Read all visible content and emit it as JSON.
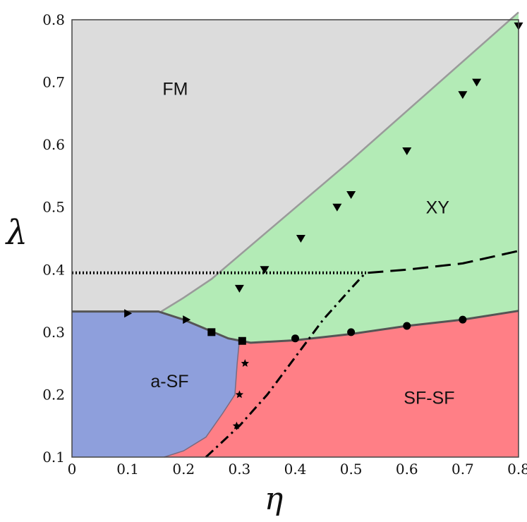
{
  "chart_data": {
    "type": "scatter",
    "title": "",
    "xlabel": "η",
    "ylabel": "λ",
    "xlim": [
      0,
      0.8
    ],
    "ylim": [
      0.1,
      0.8
    ],
    "x_ticks": [
      "0",
      "0.1",
      "0.2",
      "0.3",
      "0.4",
      "0.5",
      "0.6",
      "0.7",
      "0.8"
    ],
    "y_ticks": [
      "0.1",
      "0.2",
      "0.3",
      "0.4",
      "0.5",
      "0.6",
      "0.7",
      "0.8"
    ],
    "colors": {
      "FM": "#dcdcdc",
      "XY": "#b3ebb6",
      "a-SF": "#8e9fdc",
      "SF-SF": "#ff7f86"
    },
    "regions": [
      {
        "name": "FM",
        "label_pos": [
          0.185,
          0.68
        ]
      },
      {
        "name": "XY",
        "label_pos": [
          0.655,
          0.49
        ]
      },
      {
        "name": "a-SF",
        "label_pos": [
          0.175,
          0.212
        ]
      },
      {
        "name": "SF-SF",
        "label_pos": [
          0.64,
          0.185
        ]
      }
    ],
    "boundaries": {
      "fm_upper": [
        [
          0.16,
          0.333
        ],
        [
          0.2,
          0.355
        ],
        [
          0.25,
          0.385
        ],
        [
          0.5,
          0.575
        ],
        [
          0.8,
          0.812
        ]
      ],
      "lower": [
        [
          0,
          0.333
        ],
        [
          0.155,
          0.333
        ],
        [
          0.2,
          0.32
        ],
        [
          0.24,
          0.305
        ],
        [
          0.28,
          0.29
        ],
        [
          0.32,
          0.283
        ],
        [
          0.4,
          0.287
        ],
        [
          0.5,
          0.297
        ],
        [
          0.6,
          0.31
        ],
        [
          0.7,
          0.32
        ],
        [
          0.8,
          0.334
        ]
      ],
      "asf_sfsf": [
        [
          0.3,
          0.288
        ],
        [
          0.296,
          0.25
        ],
        [
          0.292,
          0.2
        ],
        [
          0.27,
          0.17
        ],
        [
          0.24,
          0.132
        ],
        [
          0.2,
          0.11
        ],
        [
          0.165,
          0.1
        ]
      ]
    },
    "series": [
      {
        "marker": "triangle-right",
        "points": [
          [
            0.1,
            0.33
          ],
          [
            0.205,
            0.32
          ]
        ]
      },
      {
        "marker": "square",
        "points": [
          [
            0.25,
            0.3
          ],
          [
            0.305,
            0.286
          ]
        ]
      },
      {
        "marker": "triangle-down",
        "points": [
          [
            0.3,
            0.37
          ],
          [
            0.345,
            0.4
          ],
          [
            0.41,
            0.45
          ],
          [
            0.475,
            0.5
          ],
          [
            0.5,
            0.52
          ],
          [
            0.6,
            0.59
          ],
          [
            0.7,
            0.68
          ],
          [
            0.725,
            0.7
          ],
          [
            0.8,
            0.79
          ]
        ]
      },
      {
        "marker": "circle",
        "points": [
          [
            0.4,
            0.29
          ],
          [
            0.5,
            0.3
          ],
          [
            0.6,
            0.31
          ],
          [
            0.7,
            0.32
          ]
        ]
      },
      {
        "marker": "star",
        "points": [
          [
            0.31,
            0.25
          ],
          [
            0.3,
            0.2
          ],
          [
            0.295,
            0.15
          ]
        ]
      }
    ],
    "lines": [
      {
        "style": "dotted",
        "points": [
          [
            0,
            0.395
          ],
          [
            0.53,
            0.395
          ]
        ]
      },
      {
        "style": "dashed",
        "points": [
          [
            0.53,
            0.395
          ],
          [
            0.6,
            0.4
          ],
          [
            0.7,
            0.41
          ],
          [
            0.8,
            0.43
          ]
        ]
      },
      {
        "style": "dashdot",
        "points": [
          [
            0.24,
            0.1
          ],
          [
            0.3,
            0.15
          ],
          [
            0.35,
            0.2
          ],
          [
            0.4,
            0.26
          ],
          [
            0.45,
            0.32
          ],
          [
            0.5,
            0.37
          ],
          [
            0.525,
            0.394
          ]
        ]
      }
    ]
  }
}
